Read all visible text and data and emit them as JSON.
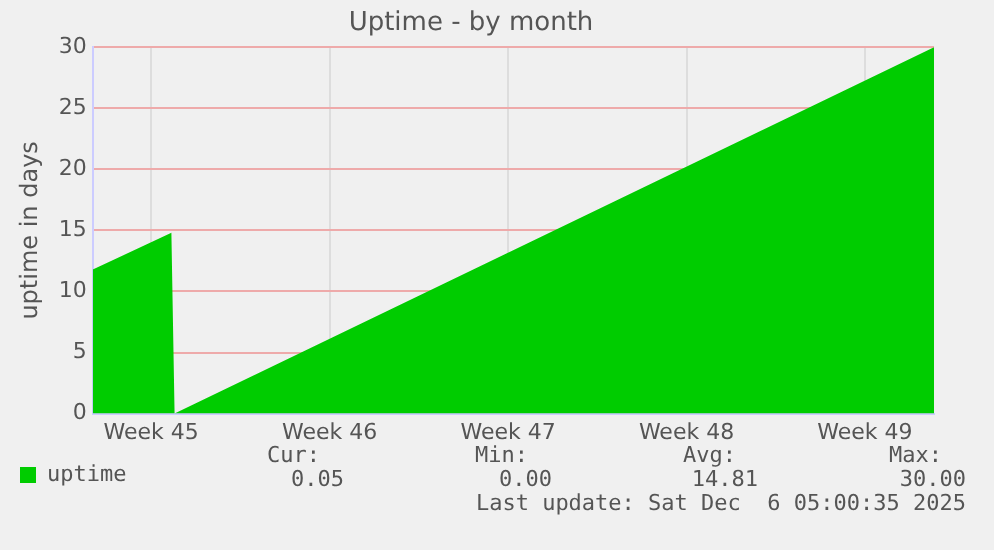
{
  "chart_data": {
    "type": "area",
    "title": "Uptime - by month",
    "ylabel": "uptime in days",
    "series": [
      {
        "name": "uptime",
        "color": "#00cc00",
        "x": [
          "2025-11-03T05:00",
          "2025-11-06T07:00",
          "2025-11-06T10:00",
          "2025-12-06T05:00"
        ],
        "values": [
          11.8,
          14.8,
          0,
          30
        ]
      }
    ],
    "xlim": [
      "2025-11-03T05:00",
      "2025-12-06T05:00"
    ],
    "xticks": [
      {
        "value": "2025-11-05T12:00",
        "label": "Week 45"
      },
      {
        "value": "2025-11-12T12:00",
        "label": "Week 46"
      },
      {
        "value": "2025-11-19T12:00",
        "label": "Week 47"
      },
      {
        "value": "2025-11-26T12:00",
        "label": "Week 48"
      },
      {
        "value": "2025-12-03T12:00",
        "label": "Week 49"
      }
    ],
    "ylim": [
      0,
      30
    ],
    "yticks": [
      0,
      5,
      10,
      15,
      20,
      25,
      30
    ],
    "grid": true,
    "legend": "bottom left",
    "annotations": [
      "Cur:",
      "Min:",
      "Avg:",
      "Max:",
      "0.05",
      "0.00",
      "14.81",
      "30.00",
      "Last update: Sat Dec  6 05:00:35 2025"
    ]
  }
}
